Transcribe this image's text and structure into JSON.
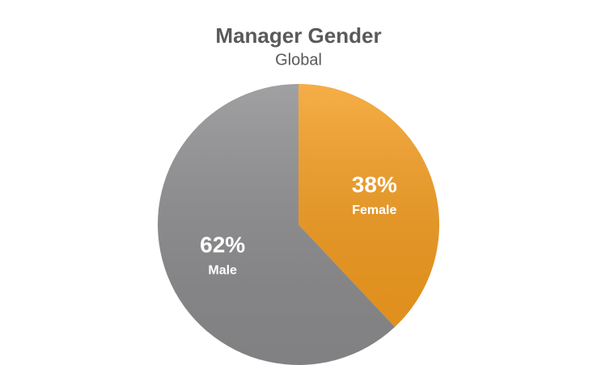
{
  "chart_data": {
    "type": "pie",
    "title": "Manager Gender",
    "subtitle": "Global",
    "categories": [
      "Female",
      "Male"
    ],
    "values": [
      38,
      62
    ],
    "value_labels": [
      "38%",
      "62%"
    ],
    "colors": [
      "#f39c1f",
      "#8c8c8e"
    ]
  }
}
